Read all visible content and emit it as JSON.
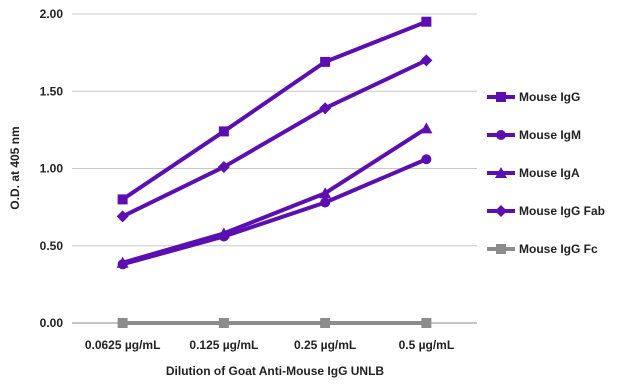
{
  "chart_data": {
    "type": "line",
    "title": "",
    "xlabel": "Dilution of Goat Anti-Mouse IgG UNLB",
    "ylabel": "O.D. at 405 nm",
    "categories": [
      "0.0625 µg/mL",
      "0.125 µg/mL",
      "0.25 µg/mL",
      "0.5 µg/mL"
    ],
    "ylim": [
      0,
      2
    ],
    "yticks": [
      "0.00",
      "0.50",
      "1.00",
      "1.50",
      "2.00"
    ],
    "grid": true,
    "legend_position": "right",
    "series": [
      {
        "name": "Mouse IgG",
        "marker": "square",
        "color": "#5b0fb0",
        "values": [
          0.8,
          1.24,
          1.69,
          1.95
        ]
      },
      {
        "name": "Mouse IgM",
        "marker": "circle",
        "color": "#5b0fb0",
        "values": [
          0.38,
          0.56,
          0.78,
          1.06
        ]
      },
      {
        "name": "Mouse IgA",
        "marker": "triangle",
        "color": "#5b0fb0",
        "values": [
          0.39,
          0.58,
          0.84,
          1.26
        ]
      },
      {
        "name": "Mouse IgG Fab",
        "marker": "diamond",
        "color": "#5b0fb0",
        "values": [
          0.69,
          1.01,
          1.39,
          1.7
        ]
      },
      {
        "name": "Mouse IgG Fc",
        "marker": "square",
        "color": "#8c8c8c",
        "values": [
          0.0,
          0.0,
          0.0,
          0.0
        ]
      }
    ]
  }
}
